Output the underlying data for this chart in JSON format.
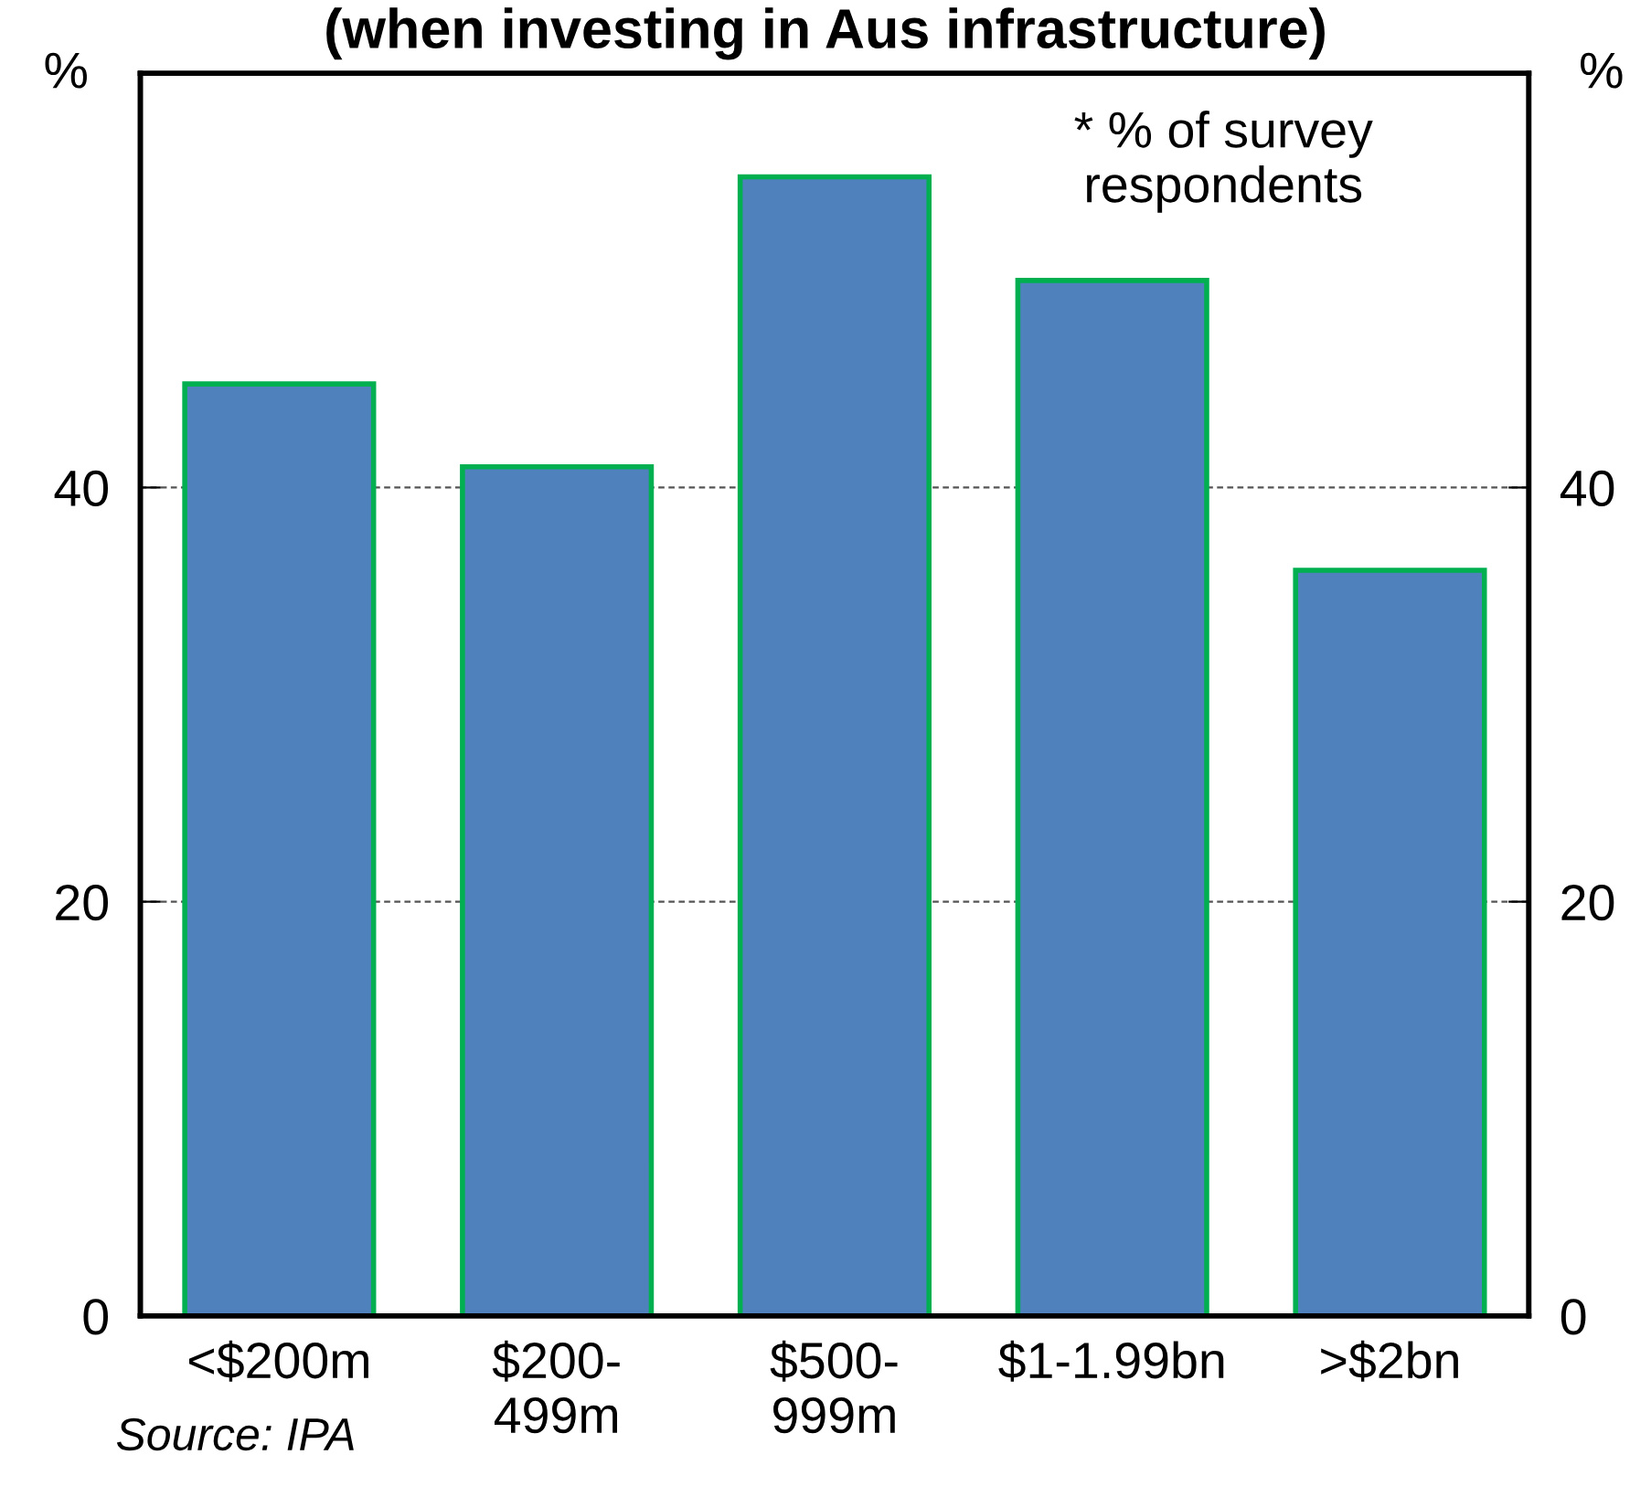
{
  "chart_data": {
    "type": "bar",
    "title": "(when investing in Aus infrastructure)",
    "ylabel": "%",
    "y2label": "%",
    "categories": [
      "<$200m",
      "$200-\n499m",
      "$500-\n999m",
      "$1-1.99bn",
      ">$2bn"
    ],
    "values": [
      45,
      41,
      55,
      50,
      36
    ],
    "color": "#4f81bd",
    "ylim": [
      0,
      60
    ],
    "yticks": [
      0,
      20,
      40
    ],
    "y2lim": [
      0,
      60
    ],
    "y2ticks": [
      0,
      20,
      40
    ],
    "grid": "y",
    "annotations": [
      "* % of survey\nrespondents",
      "Source: IPA"
    ]
  }
}
